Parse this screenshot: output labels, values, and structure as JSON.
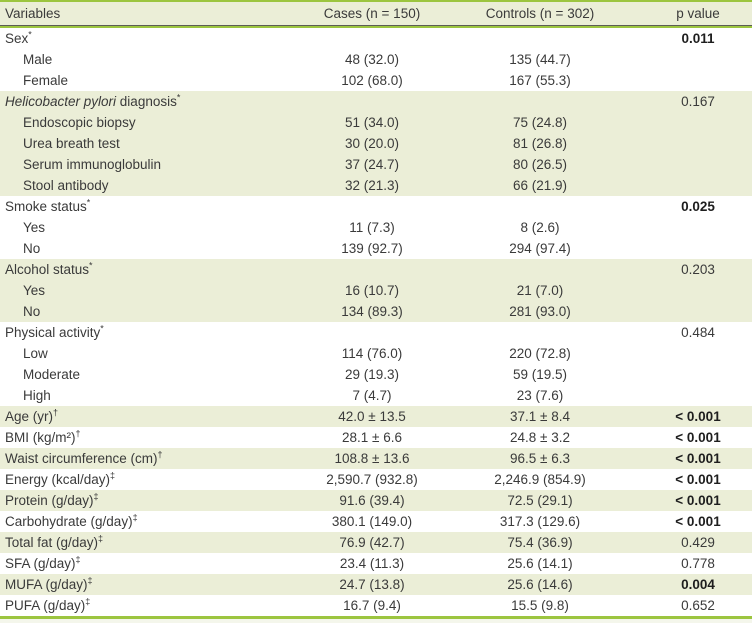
{
  "table": {
    "columns": [
      "Variables",
      "Cases (n = 150)",
      "Controls (n = 302)",
      "p value"
    ],
    "rows": [
      {
        "label": "Sex",
        "sup": "*",
        "cases": "",
        "controls": "",
        "p": "0.011",
        "bold_p": true
      },
      {
        "label": "Male",
        "indent": true,
        "cases": "48 (32.0)",
        "controls": "135 (44.7)",
        "p": ""
      },
      {
        "label": "Female",
        "indent": true,
        "cases": "102 (68.0)",
        "controls": "167 (55.3)",
        "p": ""
      },
      {
        "italic": "Helicobacter pylori",
        "label": " diagnosis",
        "sup": "*",
        "cases": "",
        "controls": "",
        "p": "0.167",
        "shaded": true
      },
      {
        "label": "Endoscopic biopsy",
        "indent": true,
        "cases": "51 (34.0)",
        "controls": "75 (24.8)",
        "p": "",
        "shaded": true
      },
      {
        "label": "Urea breath test",
        "indent": true,
        "cases": "30 (20.0)",
        "controls": "81 (26.8)",
        "p": "",
        "shaded": true
      },
      {
        "label": "Serum immunoglobulin",
        "indent": true,
        "cases": "37 (24.7)",
        "controls": "80 (26.5)",
        "p": "",
        "shaded": true
      },
      {
        "label": "Stool antibody",
        "indent": true,
        "cases": "32 (21.3)",
        "controls": "66 (21.9)",
        "p": "",
        "shaded": true
      },
      {
        "label": "Smoke status",
        "sup": "*",
        "cases": "",
        "controls": "",
        "p": "0.025",
        "bold_p": true
      },
      {
        "label": "Yes",
        "indent": true,
        "cases": "11 (7.3)",
        "controls": "8 (2.6)",
        "p": ""
      },
      {
        "label": "No",
        "indent": true,
        "cases": "139 (92.7)",
        "controls": "294 (97.4)",
        "p": ""
      },
      {
        "label": "Alcohol status",
        "sup": "*",
        "cases": "",
        "controls": "",
        "p": "0.203",
        "shaded": true
      },
      {
        "label": "Yes",
        "indent": true,
        "cases": "16 (10.7)",
        "controls": "21 (7.0)",
        "p": "",
        "shaded": true
      },
      {
        "label": "No",
        "indent": true,
        "cases": "134 (89.3)",
        "controls": "281 (93.0)",
        "p": "",
        "shaded": true
      },
      {
        "label": "Physical activity",
        "sup": "*",
        "cases": "",
        "controls": "",
        "p": "0.484"
      },
      {
        "label": "Low",
        "indent": true,
        "cases": "114 (76.0)",
        "controls": "220 (72.8)",
        "p": ""
      },
      {
        "label": "Moderate",
        "indent": true,
        "cases": "29 (19.3)",
        "controls": "59 (19.5)",
        "p": ""
      },
      {
        "label": "High",
        "indent": true,
        "cases": "7 (4.7)",
        "controls": "23 (7.6)",
        "p": ""
      },
      {
        "label": "Age (yr)",
        "sup": "†",
        "cases": "42.0 ± 13.5",
        "controls": "37.1 ± 8.4",
        "p": "< 0.001",
        "bold_p": true,
        "shaded": true
      },
      {
        "label": "BMI (kg/m²)",
        "sup": "†",
        "cases": "28.1 ± 6.6",
        "controls": "24.8 ± 3.2",
        "p": "< 0.001",
        "bold_p": true
      },
      {
        "label": "Waist circumference (cm)",
        "sup": "†",
        "cases": "108.8 ± 13.6",
        "controls": "96.5 ± 6.3",
        "p": "< 0.001",
        "bold_p": true,
        "shaded": true
      },
      {
        "label": "Energy (kcal/day)",
        "sup": "‡",
        "cases": "2,590.7 (932.8)",
        "controls": "2,246.9 (854.9)",
        "p": "< 0.001",
        "bold_p": true
      },
      {
        "label": "Protein (g/day)",
        "sup": "‡",
        "cases": "91.6 (39.4)",
        "controls": "72.5 (29.1)",
        "p": "< 0.001",
        "bold_p": true,
        "shaded": true
      },
      {
        "label": "Carbohydrate (g/day)",
        "sup": "‡",
        "cases": "380.1 (149.0)",
        "controls": "317.3 (129.6)",
        "p": "< 0.001",
        "bold_p": true
      },
      {
        "label": "Total fat (g/day)",
        "sup": "‡",
        "cases": "76.9 (42.7)",
        "controls": "75.4 (36.9)",
        "p": "0.429",
        "shaded": true
      },
      {
        "label": "SFA (g/day)",
        "sup": "‡",
        "cases": "23.4 (11.3)",
        "controls": "25.6 (14.1)",
        "p": "0.778"
      },
      {
        "label": "MUFA (g/day)",
        "sup": "‡",
        "cases": "24.7 (13.8)",
        "controls": "25.6 (14.6)",
        "p": "0.004",
        "bold_p": true,
        "shaded": true
      },
      {
        "label": "PUFA (g/day)",
        "sup": "‡",
        "cases": "16.7 (9.4)",
        "controls": "15.5 (9.8)",
        "p": "0.652"
      }
    ]
  },
  "colors": {
    "accent_green_rule": "#9cc53f",
    "section_band": "#ebeed7",
    "header_band": "#ebeed7",
    "dark_rule": "#5c5d55",
    "text": "#3a3a3a",
    "bold_p_text": "#1e1e1e",
    "bottom_pale_strip": "#f4f6eb"
  }
}
